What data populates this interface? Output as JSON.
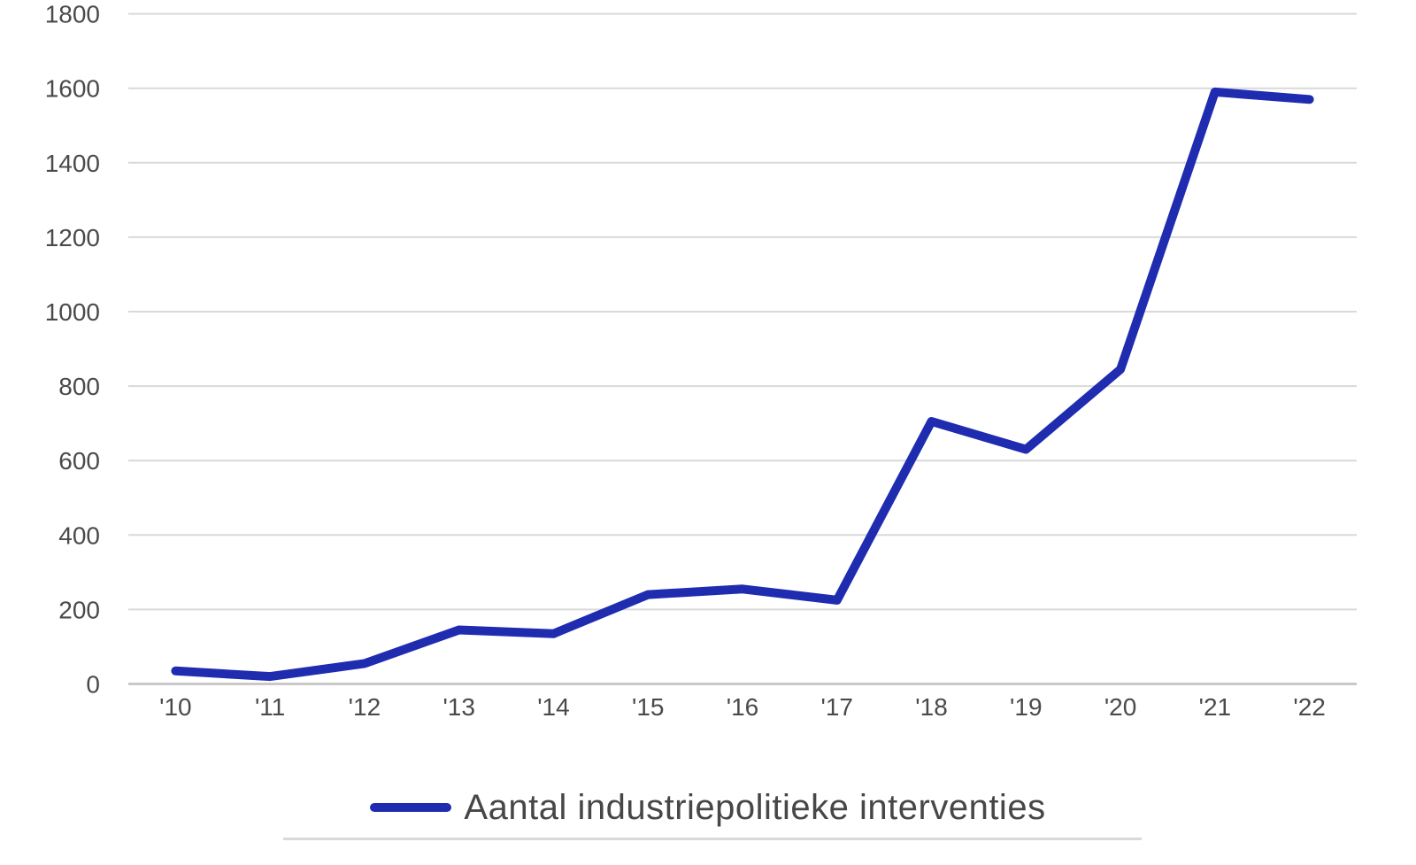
{
  "chart_data": {
    "type": "line",
    "title": "",
    "categories": [
      "'10",
      "'11",
      "'12",
      "'13",
      "'14",
      "'15",
      "'16",
      "'17",
      "'18",
      "'19",
      "'20",
      "'21",
      "'22"
    ],
    "series": [
      {
        "name": "Aantal industriepolitieke interventies",
        "values": [
          35,
          20,
          55,
          145,
          135,
          240,
          255,
          225,
          705,
          630,
          845,
          1590,
          1570
        ]
      }
    ],
    "xlabel": "",
    "ylabel": "",
    "ylim": [
      0,
      1800
    ],
    "y_ticks": [
      0,
      200,
      400,
      600,
      800,
      1000,
      1200,
      1400,
      1600,
      1800
    ],
    "grid": "horizontal",
    "legend_position": "bottom",
    "colors": {
      "line": "#1f2cb0",
      "gridline": "#d9d9d9",
      "axis_line": "#c9c9c9",
      "tick_label": "#4a4a4a",
      "legend_text": "#474747",
      "legend_underline": "#d9d9d9",
      "background": "#ffffff"
    }
  },
  "legend": {
    "label": "Aantal industriepolitieke interventies"
  }
}
